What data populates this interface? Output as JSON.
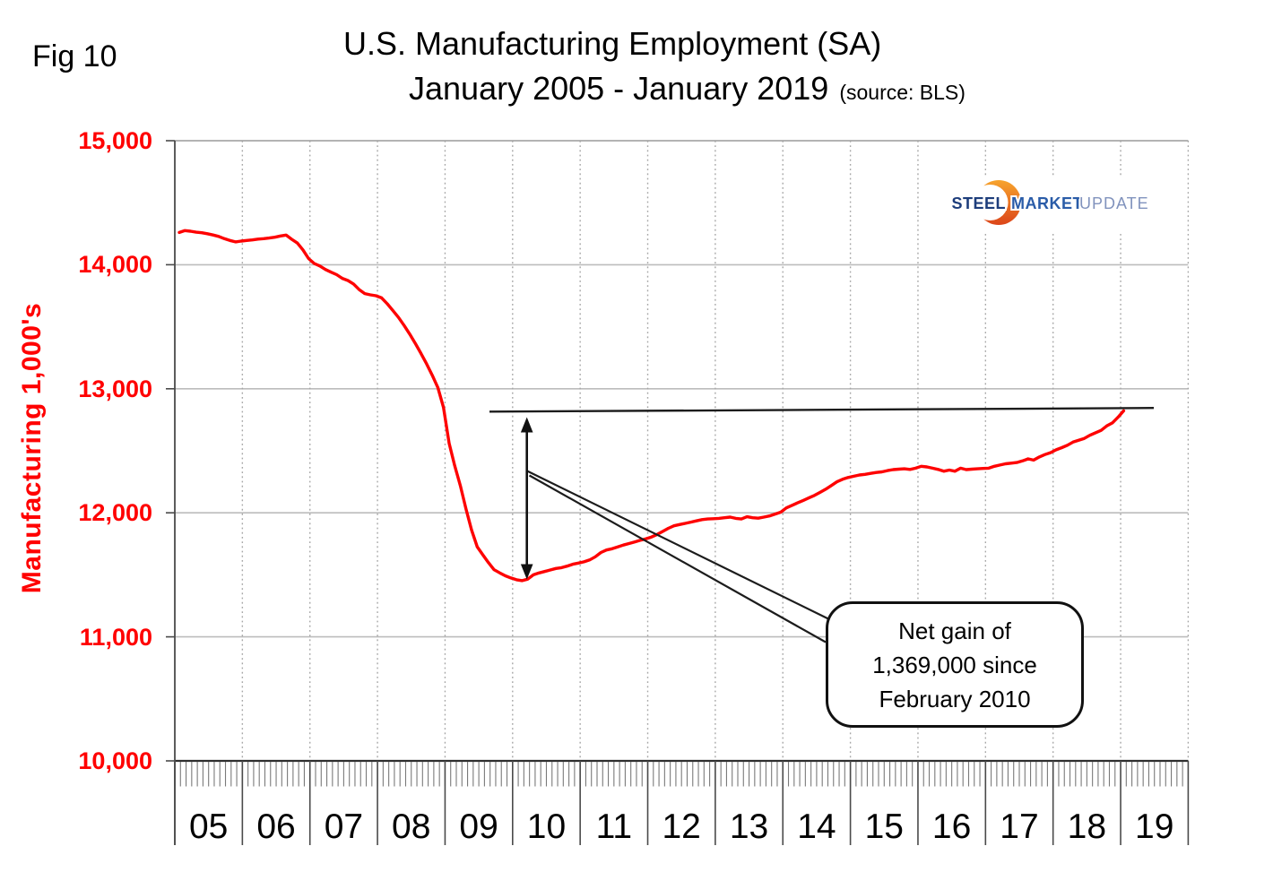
{
  "fig_label": "Fig 10",
  "title": {
    "line1": "U.S. Manufacturing Employment (SA)",
    "line2": "January 2005 - January 2019",
    "source_note": "(source: BLS)"
  },
  "y_axis": {
    "title": "Manufacturing  1,000's",
    "tick_labels": [
      "15,000",
      "14,000",
      "13,000",
      "12,000",
      "11,000",
      "10,000"
    ]
  },
  "x_axis": {
    "year_labels": [
      "05",
      "06",
      "07",
      "08",
      "09",
      "10",
      "11",
      "12",
      "13",
      "14",
      "15",
      "16",
      "17",
      "18",
      "19"
    ]
  },
  "logo": {
    "steel": "STEEL",
    "market": "MARKET",
    "update": "UPDATE"
  },
  "callout": {
    "lines": [
      "Net gain of",
      "1,369,000 since",
      "February 2010"
    ]
  },
  "colors": {
    "series": "#FE0000",
    "axis_text": "#FF0000",
    "annotation_ink": "#1A1A1A",
    "logo_steel": "#1D3D7B",
    "logo_market": "#2A5CA8",
    "logo_update": "#8193BD",
    "logo_crescent_top": "#F7A42D",
    "logo_crescent_bottom": "#DC451A"
  },
  "chart_data": {
    "type": "line",
    "title": "U.S. Manufacturing Employment (SA)",
    "subtitle": "January 2005 - January 2019",
    "source": "BLS",
    "ylabel": "Manufacturing 1,000's",
    "ylim": [
      10000,
      15000
    ],
    "y_tick_step": 1000,
    "frequency": "monthly",
    "x_start": "2005-01",
    "x_end": "2019-01",
    "x_year_cells": [
      "05",
      "06",
      "07",
      "08",
      "09",
      "10",
      "11",
      "12",
      "13",
      "14",
      "15",
      "16",
      "17",
      "18",
      "19"
    ],
    "grid": "horizontal solid gray at thousands, vertical dotted gray at year boundaries",
    "legend": "none",
    "series": [
      {
        "name": "Manufacturing employment (thousands, SA)",
        "color": "#FE0000",
        "values": [
          14260,
          14275,
          14270,
          14262,
          14258,
          14250,
          14240,
          14228,
          14210,
          14196,
          14184,
          14191,
          14196,
          14200,
          14207,
          14210,
          14215,
          14222,
          14232,
          14239,
          14205,
          14175,
          14120,
          14050,
          14010,
          13990,
          13962,
          13940,
          13920,
          13890,
          13873,
          13845,
          13800,
          13767,
          13757,
          13750,
          13733,
          13685,
          13630,
          13575,
          13510,
          13440,
          13365,
          13285,
          13200,
          13110,
          13010,
          12850,
          12561,
          12380,
          12219,
          12031,
          11862,
          11726,
          11661,
          11599,
          11541,
          11516,
          11492,
          11475,
          11460,
          11453,
          11465,
          11500,
          11515,
          11527,
          11539,
          11551,
          11558,
          11570,
          11585,
          11595,
          11605,
          11620,
          11645,
          11680,
          11700,
          11710,
          11725,
          11740,
          11752,
          11765,
          11778,
          11790,
          11805,
          11825,
          11850,
          11875,
          11895,
          11905,
          11915,
          11925,
          11935,
          11945,
          11950,
          11952,
          11955,
          11960,
          11965,
          11955,
          11950,
          11968,
          11960,
          11957,
          11965,
          11975,
          11990,
          12005,
          12040,
          12060,
          12080,
          12100,
          12120,
          12140,
          12165,
          12190,
          12220,
          12250,
          12270,
          12285,
          12295,
          12305,
          12310,
          12318,
          12325,
          12330,
          12340,
          12348,
          12352,
          12355,
          12350,
          12360,
          12375,
          12370,
          12360,
          12350,
          12335,
          12345,
          12335,
          12360,
          12348,
          12352,
          12355,
          12358,
          12360,
          12375,
          12385,
          12395,
          12400,
          12405,
          12418,
          12435,
          12425,
          12450,
          12470,
          12485,
          12508,
          12525,
          12545,
          12570,
          12585,
          12600,
          12625,
          12645,
          12665,
          12700,
          12725,
          12770,
          12822
        ]
      }
    ],
    "annotations": {
      "reference_line": {
        "value": 12822,
        "spans": "from mid-2009 to the right edge of plot"
      },
      "gain_arrow": {
        "at": "February 2010 trough",
        "from_value": 11453,
        "to_value": 12822
      },
      "callout_text": "Net gain of 1,369,000 since February 2010"
    }
  }
}
